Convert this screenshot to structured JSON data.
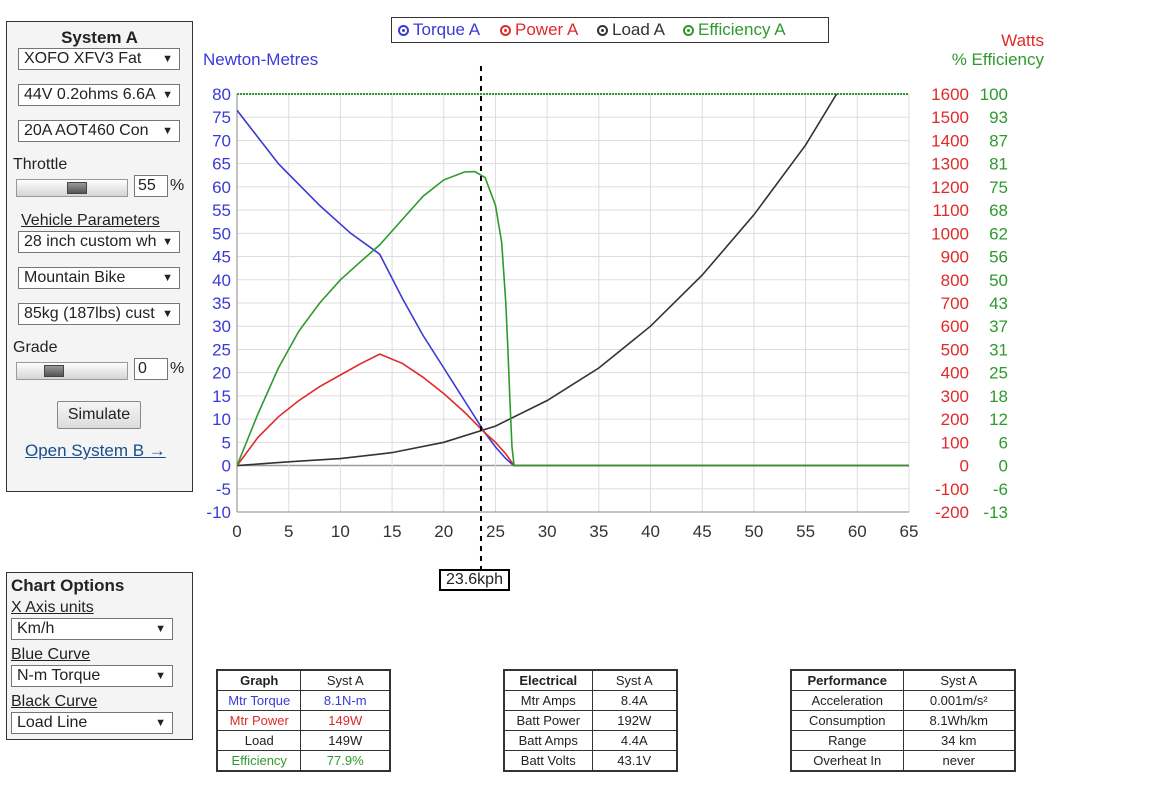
{
  "system_panel": {
    "title": "System A",
    "motor": "XOFO XFV3 Fat",
    "battery": "44V 0.2ohms 6.6A",
    "controller": "20A AOT460 Con",
    "throttle_label": "Throttle",
    "throttle_value": "55",
    "throttle_fraction": 0.55,
    "percent_symbol": "%",
    "vehicle_params_label": "Vehicle Parameters",
    "wheel": "28 inch custom wh",
    "bike_type": "Mountain Bike",
    "weight": "85kg (187lbs) cust",
    "grade_label": "Grade",
    "grade_value": "0",
    "grade_fraction": 0.3,
    "simulate_label": "Simulate",
    "open_b_label": "Open System B →"
  },
  "chart_options": {
    "title": "Chart Options",
    "x_units_label": "X Axis units",
    "x_units_value": "Km/h",
    "blue_curve_label": "Blue Curve",
    "blue_curve_value": "N-m Torque",
    "black_curve_label": "Black Curve",
    "black_curve_value": "Load Line"
  },
  "chart_data": {
    "type": "line",
    "legend": [
      "Torque A",
      "Power A",
      "Load A",
      "Efficiency A"
    ],
    "colors": {
      "torque": "#3a3ad6",
      "power": "#e02a2a",
      "load": "#333333",
      "efficiency": "#2e9a2e",
      "grid": "#dddddd"
    },
    "left_axis_title": "Newton-Metres",
    "right_axis_title_1": "Watts",
    "right_axis_title_2": "% Efficiency",
    "xlim": [
      0,
      65
    ],
    "ylim": [
      -10,
      80
    ],
    "x_ticks": [
      "0",
      "5",
      "10",
      "15",
      "20",
      "25",
      "30",
      "35",
      "40",
      "45",
      "50",
      "55",
      "60",
      "65"
    ],
    "y_left_ticks": [
      "80",
      "75",
      "70",
      "65",
      "60",
      "55",
      "50",
      "45",
      "40",
      "35",
      "30",
      "25",
      "20",
      "15",
      "10",
      "5",
      "0",
      "-5",
      "-10"
    ],
    "y_watts_ticks": [
      "1600",
      "1500",
      "1400",
      "1300",
      "1200",
      "1100",
      "1000",
      "900",
      "800",
      "700",
      "600",
      "500",
      "400",
      "300",
      "200",
      "100",
      "0",
      "-100",
      "-200"
    ],
    "y_eff_ticks": [
      "100",
      "93",
      "87",
      "81",
      "75",
      "68",
      "62",
      "56",
      "50",
      "43",
      "37",
      "31",
      "25",
      "18",
      "12",
      "6",
      "0",
      "-6",
      "-13"
    ],
    "marker_x": 23.6,
    "marker_label": "23.6kph",
    "series": [
      {
        "name": "Torque A",
        "key": "torque",
        "x": [
          0,
          4,
          8,
          11,
          13.8,
          16,
          18,
          20,
          22,
          24,
          25,
          26,
          26.5,
          26.8,
          65
        ],
        "y": [
          76.5,
          65,
          56,
          50,
          45.5,
          36,
          28,
          21,
          14,
          7,
          4,
          1.5,
          0.5,
          0,
          0
        ]
      },
      {
        "name": "Power A",
        "key": "power",
        "x": [
          0,
          2,
          4,
          6,
          8,
          10,
          12,
          13.8,
          16,
          18,
          20,
          22,
          24,
          25,
          26,
          26.8,
          65
        ],
        "y": [
          0,
          6,
          10.5,
          14,
          17,
          19.5,
          22,
          24,
          22,
          19,
          15.5,
          11.5,
          7,
          5,
          2.5,
          0,
          0
        ]
      },
      {
        "name": "Load A",
        "key": "load",
        "x": [
          0,
          5,
          10,
          15,
          20,
          25,
          30,
          35,
          40,
          45,
          50,
          55,
          58
        ],
        "y": [
          0,
          0.8,
          1.5,
          2.8,
          5,
          8.5,
          14,
          21,
          30,
          41,
          54,
          69,
          80
        ]
      },
      {
        "name": "Efficiency A",
        "key": "efficiency",
        "x": [
          0,
          2,
          4,
          6,
          8,
          10,
          12,
          13.8,
          16,
          18,
          20,
          22,
          23,
          24,
          25,
          25.6,
          26,
          26.2,
          26.4,
          26.6,
          26.8,
          65
        ],
        "y": [
          0,
          11,
          21,
          29,
          35,
          40,
          44,
          47.5,
          53,
          58,
          61.5,
          63.2,
          63.3,
          62,
          56,
          48,
          35,
          25,
          14,
          4,
          0,
          0
        ]
      }
    ]
  },
  "tables": {
    "graph": {
      "headers": [
        "Graph",
        "Syst A"
      ],
      "rows": [
        [
          "Mtr Torque",
          "8.1N-m"
        ],
        [
          "Mtr Power",
          "149W"
        ],
        [
          "Load",
          "149W"
        ],
        [
          "Efficiency",
          "77.9%"
        ]
      ]
    },
    "electrical": {
      "headers": [
        "Electrical",
        "Syst A"
      ],
      "rows": [
        [
          "Mtr Amps",
          "8.4A"
        ],
        [
          "Batt Power",
          "192W"
        ],
        [
          "Batt Amps",
          "4.4A"
        ],
        [
          "Batt Volts",
          "43.1V"
        ]
      ]
    },
    "performance": {
      "headers": [
        "Performance",
        "Syst A"
      ],
      "rows": [
        [
          "Acceleration",
          "0.001m/s²"
        ],
        [
          "Consumption",
          "8.1Wh/km"
        ],
        [
          "Range",
          "34 km"
        ],
        [
          "Overheat In",
          "never"
        ]
      ]
    }
  }
}
